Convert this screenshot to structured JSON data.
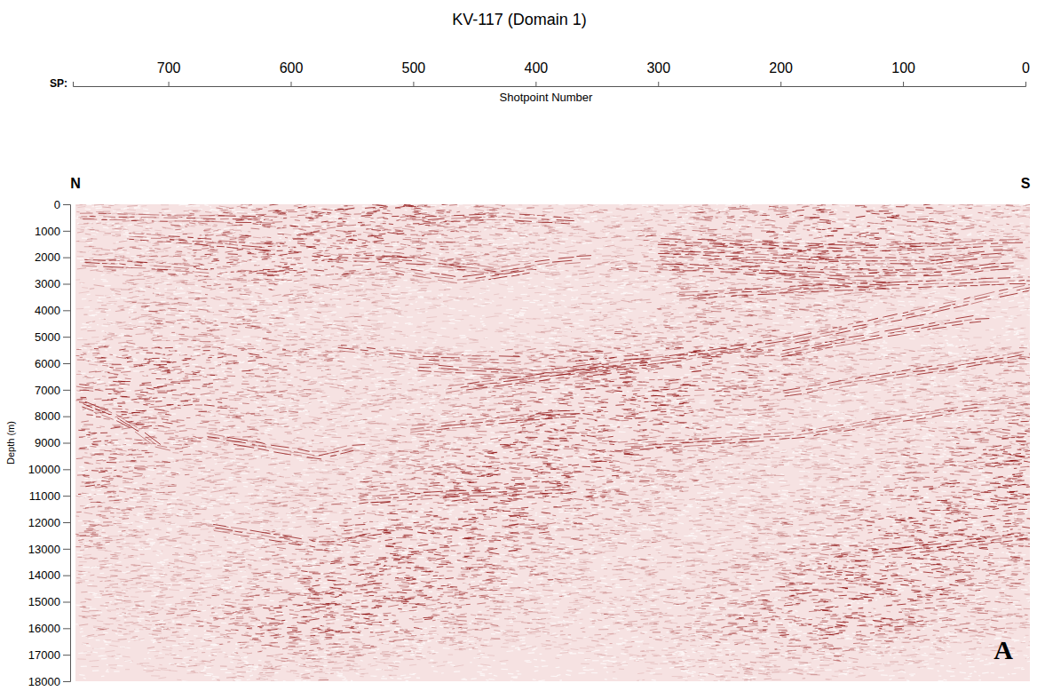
{
  "chart_data": {
    "type": "seismic_section",
    "title": "KV-117 (Domain 1)",
    "x_axis_prefix": "SP:",
    "xlabel": "Shotpoint Number",
    "ylabel": "Depth (m)",
    "xlim": [
      778,
      0
    ],
    "xticks": [
      700,
      600,
      500,
      400,
      300,
      200,
      100,
      0
    ],
    "ylim": [
      0,
      18000
    ],
    "yticks": [
      0,
      1000,
      2000,
      3000,
      4000,
      5000,
      6000,
      7000,
      8000,
      9000,
      10000,
      11000,
      12000,
      13000,
      14000,
      15000,
      16000,
      17000,
      18000
    ],
    "direction_labels": [
      "N",
      "S"
    ],
    "panel_label": "A"
  }
}
